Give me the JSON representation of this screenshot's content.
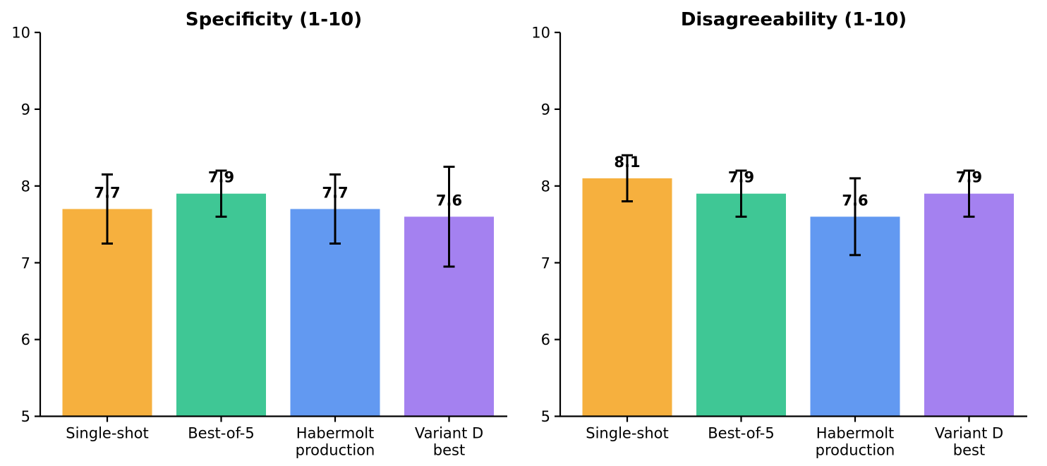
{
  "figure": {
    "background": "#ffffff",
    "axis_color": "#000000",
    "error_bar_color": "#000000",
    "text_color": "#000000"
  },
  "chart_data": [
    {
      "type": "bar",
      "title": "Specificity (1-10)",
      "categories": [
        "Single-shot",
        "Best-of-5",
        "Habermolt\nproduction",
        "Variant D\nbest"
      ],
      "values": [
        7.7,
        7.9,
        7.7,
        7.6
      ],
      "errors": [
        0.45,
        0.3,
        0.45,
        0.65
      ],
      "value_labels": [
        "7.7",
        "7.9",
        "7.7",
        "7.6"
      ],
      "bar_colors": [
        "#F6B03E",
        "#3FC795",
        "#6299F1",
        "#A481F0"
      ],
      "xlabel": "",
      "ylabel": "",
      "ylim": [
        5,
        10
      ],
      "yticks": [
        5,
        6,
        7,
        8,
        9,
        10
      ],
      "grid": false,
      "legend": null
    },
    {
      "type": "bar",
      "title": "Disagreeability (1-10)",
      "categories": [
        "Single-shot",
        "Best-of-5",
        "Habermolt\nproduction",
        "Variant D\nbest"
      ],
      "values": [
        8.1,
        7.9,
        7.6,
        7.9
      ],
      "errors": [
        0.3,
        0.3,
        0.5,
        0.3
      ],
      "value_labels": [
        "8.1",
        "7.9",
        "7.6",
        "7.9"
      ],
      "bar_colors": [
        "#F6B03E",
        "#3FC795",
        "#6299F1",
        "#A481F0"
      ],
      "xlabel": "",
      "ylabel": "",
      "ylim": [
        5,
        10
      ],
      "yticks": [
        5,
        6,
        7,
        8,
        9,
        10
      ],
      "grid": false,
      "legend": null
    }
  ]
}
